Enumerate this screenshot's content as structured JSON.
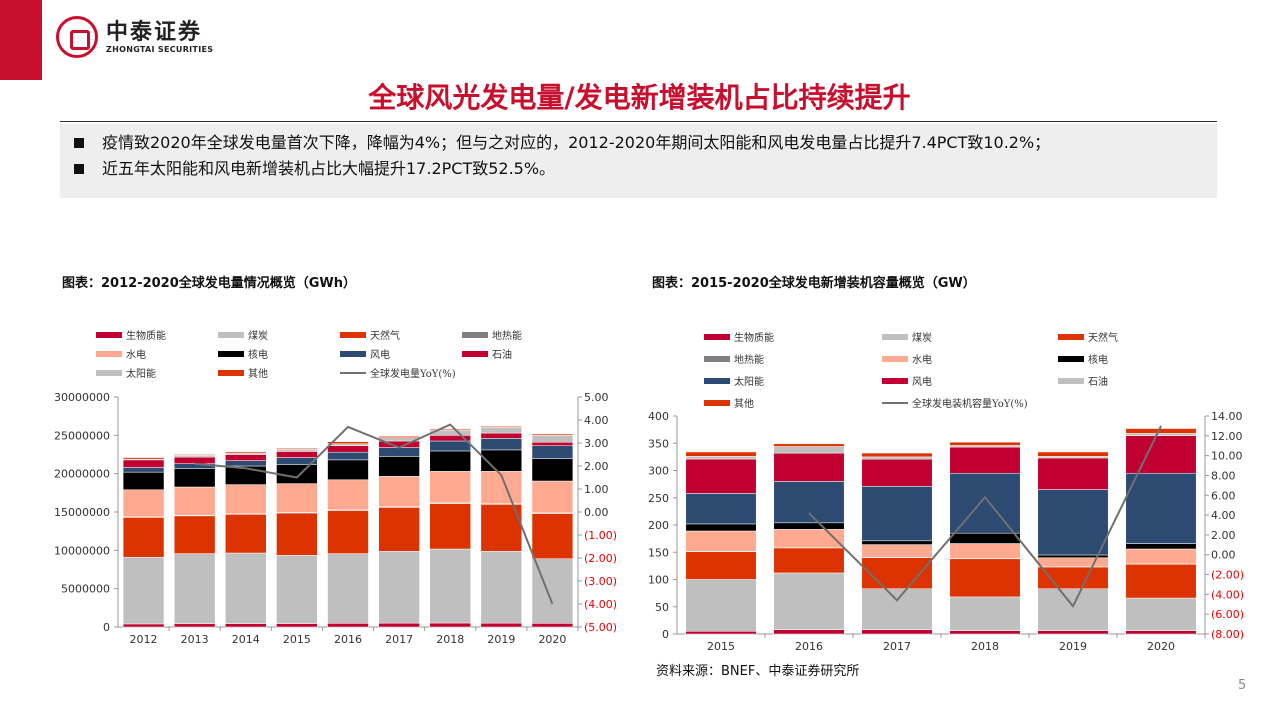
{
  "header": {
    "logo_cn": "中泰证券",
    "logo_en": "ZHONGTAI SECURITIES",
    "title": "全球风光发电量/发电新增装机占比持续提升"
  },
  "bullets": [
    "疫情致2020年全球发电量首次下降，降幅为4%；但与之对应的，2012-2020年期间太阳能和风电发电量占比提升7.4PCT致10.2%；",
    "近五年太阳能和风电新增装机占比大幅提升17.2PCT致52.5%。"
  ],
  "source": "资料来源：BNEF、中泰证券研究所",
  "page_number": "5",
  "chart_data": [
    {
      "type": "bar",
      "stacked": true,
      "title": "图表：2012-2020全球发电量情况概览（GWh）",
      "categories": [
        "2012",
        "2013",
        "2014",
        "2015",
        "2016",
        "2017",
        "2018",
        "2019",
        "2020"
      ],
      "ylim": [
        0,
        30000000
      ],
      "yticks": [
        "0",
        "5000000",
        "10000000",
        "15000000",
        "20000000",
        "25000000",
        "30000000"
      ],
      "y2lim": [
        -5,
        5
      ],
      "y2ticks": [
        "(5.00)",
        "(4.00)",
        "(3.00)",
        "(2.00)",
        "(1.00)",
        "0.00",
        "1.00",
        "2.00",
        "3.00",
        "4.00",
        "5.00"
      ],
      "legend_placement": "top",
      "grid": false,
      "series": [
        {
          "name": "生物质能",
          "color": "#c00030",
          "values": [
            400000,
            420000,
            430000,
            450000,
            480000,
            500000,
            520000,
            500000,
            480000
          ]
        },
        {
          "name": "煤炭",
          "color": "#bfbfbf",
          "values": [
            8700000,
            9150000,
            9220000,
            8900000,
            9090000,
            9370000,
            9650000,
            9370000,
            8420000
          ]
        },
        {
          "name": "天然气",
          "color": "#dd3300",
          "values": [
            5200000,
            4930000,
            5050000,
            5520000,
            5630000,
            5730000,
            5930000,
            6130000,
            5900000
          ]
        },
        {
          "name": "地热能",
          "color": "#808080",
          "values": [
            70000,
            70000,
            80000,
            80000,
            80000,
            90000,
            90000,
            90000,
            90000
          ]
        },
        {
          "name": "水电",
          "color": "#ffaa90",
          "values": [
            3530000,
            3690000,
            3790000,
            3750000,
            3920000,
            3960000,
            4110000,
            4210000,
            4150000
          ]
        },
        {
          "name": "核电",
          "color": "#000000",
          "values": [
            2300000,
            2390000,
            2430000,
            2470000,
            2600000,
            2610000,
            2660000,
            2800000,
            2920000
          ]
        },
        {
          "name": "风电",
          "color": "#2c4a72",
          "values": [
            600000,
            650000,
            700000,
            930000,
            1000000,
            1140000,
            1300000,
            1500000,
            1690000
          ]
        },
        {
          "name": "石油",
          "color": "#c00030",
          "values": [
            1000000,
            870000,
            800000,
            800000,
            850000,
            860000,
            740000,
            700000,
            450000
          ]
        },
        {
          "name": "太阳能",
          "color": "#bfbfbf",
          "values": [
            100000,
            230000,
            200000,
            270000,
            250000,
            440000,
            650000,
            740000,
            900000
          ]
        },
        {
          "name": "其他",
          "color": "#dd3300",
          "values": [
            200000,
            100000,
            170000,
            130000,
            270000,
            170000,
            150000,
            130000,
            170000
          ]
        }
      ],
      "line": {
        "name": "全球发电量YoY(%)",
        "color": "#707070",
        "values": [
          null,
          2.1,
          1.9,
          1.5,
          3.7,
          2.8,
          3.8,
          1.6,
          -4.0
        ]
      }
    },
    {
      "type": "bar",
      "stacked": true,
      "title": "图表：2015-2020全球发电新增装机容量概览（GW）",
      "categories": [
        "2015",
        "2016",
        "2017",
        "2018",
        "2019",
        "2020"
      ],
      "ylim": [
        0,
        400
      ],
      "yticks": [
        "0",
        "50",
        "100",
        "150",
        "200",
        "250",
        "300",
        "350",
        "400"
      ],
      "y2lim": [
        -8,
        14
      ],
      "y2ticks": [
        "(8.00)",
        "(6.00)",
        "(4.00)",
        "(2.00)",
        "0.00",
        "2.00",
        "4.00",
        "6.00",
        "8.00",
        "10.00",
        "12.00",
        "14.00"
      ],
      "legend_placement": "top",
      "grid": false,
      "series": [
        {
          "name": "生物质能",
          "color": "#c00030",
          "values": [
            5,
            8,
            8,
            6,
            6,
            6
          ]
        },
        {
          "name": "煤炭",
          "color": "#bfbfbf",
          "values": [
            95,
            104,
            75,
            62,
            77,
            60
          ]
        },
        {
          "name": "天然气",
          "color": "#dd3300",
          "values": [
            51,
            46,
            57,
            70,
            40,
            62
          ]
        },
        {
          "name": "地热能",
          "color": "#808080",
          "values": [
            0.5,
            0.5,
            0.5,
            0.5,
            0.5,
            0.5
          ]
        },
        {
          "name": "水电",
          "color": "#ffaa90",
          "values": [
            37.5,
            33.5,
            23.5,
            27.5,
            16.5,
            27.5
          ]
        },
        {
          "name": "核电",
          "color": "#000000",
          "values": [
            13,
            12,
            7,
            19,
            5,
            10
          ]
        },
        {
          "name": "太阳能",
          "color": "#2c4a72",
          "values": [
            56,
            76,
            100,
            110,
            120,
            129
          ]
        },
        {
          "name": "风电",
          "color": "#c00030",
          "values": [
            63,
            52,
            50,
            48,
            58,
            69
          ]
        },
        {
          "name": "石油",
          "color": "#bfbfbf",
          "values": [
            5,
            12,
            4,
            3,
            3,
            4
          ]
        },
        {
          "name": "其他",
          "color": "#dd3300",
          "values": [
            8,
            5,
            7,
            6,
            8,
            9
          ]
        }
      ],
      "line": {
        "name": "全球发电装机容量YoY(%)",
        "color": "#707070",
        "values": [
          null,
          4.2,
          -4.6,
          5.8,
          -5.2,
          13.0
        ]
      }
    }
  ]
}
